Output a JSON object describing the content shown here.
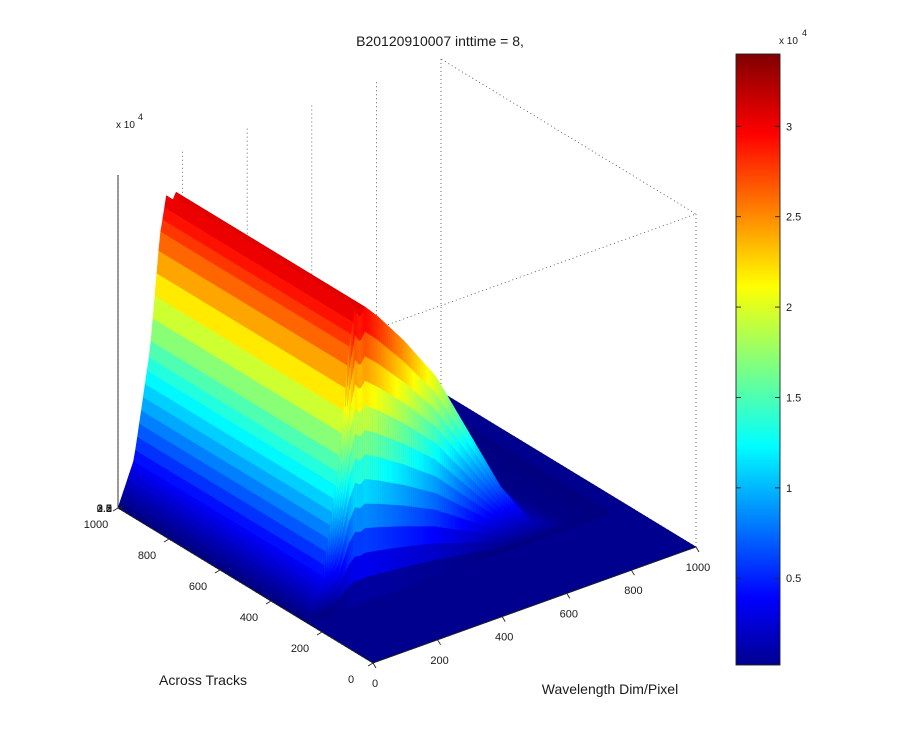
{
  "chart_data": {
    "type": "surface",
    "title": "B20120910007 inttime = 8,",
    "xlabel": "Wavelength Dim/Pixel",
    "ylabel": "Across Tracks",
    "zlabel": "",
    "x_ticks": [
      "0",
      "200",
      "400",
      "600",
      "800",
      "1000"
    ],
    "y_ticks": [
      "0",
      "200",
      "400",
      "600",
      "800",
      "1000"
    ],
    "z_ticks": [
      "0",
      "0.5",
      "1",
      "1.5",
      "2",
      "2.5",
      "3",
      "3.5"
    ],
    "z_exponent_base": "x 10",
    "z_exponent_power": "4",
    "xlim": [
      0,
      1000
    ],
    "ylim": [
      0,
      1000
    ],
    "zlim": [
      0,
      35000
    ],
    "grid": true,
    "colormap": "jet",
    "colorbar": {
      "ticks": [
        "0.5",
        "1",
        "1.5",
        "2",
        "2.5",
        "3"
      ],
      "exponent_base": "x 10",
      "exponent_power": "4",
      "range": [
        200,
        34000
      ]
    },
    "profile": [
      {
        "x": 0,
        "y": 0
      },
      {
        "x": 50,
        "y": 4500
      },
      {
        "x": 100,
        "y": 15500
      },
      {
        "x": 130,
        "y": 27000
      },
      {
        "x": 150,
        "y": 31000
      },
      {
        "x": 165,
        "y": 30000
      },
      {
        "x": 180,
        "y": 31000
      },
      {
        "x": 220,
        "y": 29500
      },
      {
        "x": 300,
        "y": 26000
      },
      {
        "x": 400,
        "y": 21000
      },
      {
        "x": 500,
        "y": 14000
      },
      {
        "x": 600,
        "y": 7000
      },
      {
        "x": 700,
        "y": 2000
      },
      {
        "x": 800,
        "y": 500
      },
      {
        "x": 1000,
        "y": 0
      }
    ],
    "track_range": [
      260,
      1000
    ]
  }
}
